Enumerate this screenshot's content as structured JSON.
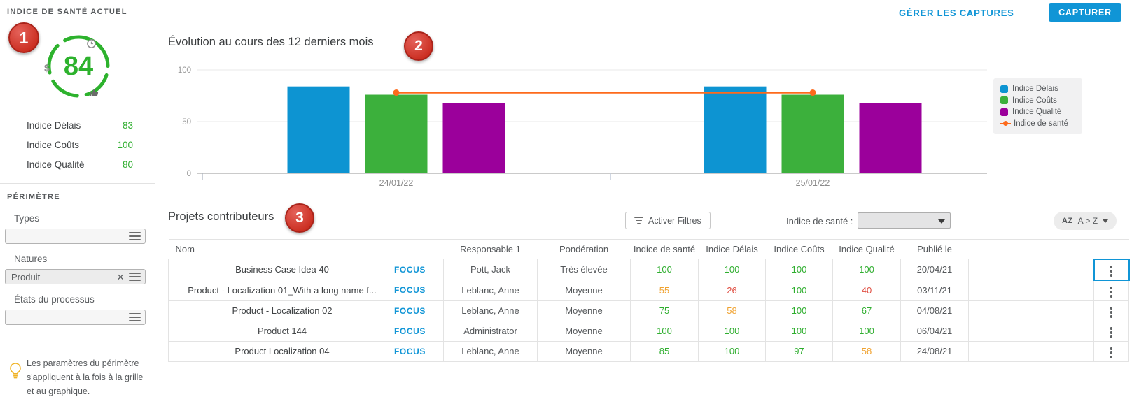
{
  "colors": {
    "accent_blue": "#1095d6",
    "badge_red": "#cb2e21",
    "status_green": "#2fae2f",
    "status_orange": "#f0a22f",
    "status_red": "#e04f43"
  },
  "annotations": {
    "badge1": "1",
    "badge2": "2",
    "badge3": "3"
  },
  "header": {
    "manage_captures_label": "GÉRER LES CAPTURES",
    "capture_label": "CAPTURER"
  },
  "sidebar": {
    "health_title": "INDICE DE SANTÉ ACTUEL",
    "gauge_value": "84",
    "indices": [
      {
        "label": "Indice Délais",
        "value": "83"
      },
      {
        "label": "Indice Coûts",
        "value": "100"
      },
      {
        "label": "Indice Qualité",
        "value": "80"
      }
    ],
    "perimetre_title": "PÉRIMÈTRE",
    "filters": [
      {
        "key": "types",
        "label": "Types",
        "value": "",
        "clearable": false
      },
      {
        "key": "natures",
        "label": "Natures",
        "value": "Produit",
        "clearable": true
      },
      {
        "key": "etats-du-processus",
        "label": "États du processus",
        "value": "",
        "clearable": false
      }
    ],
    "note": "Les paramètres du périmètre s'appliquent à la fois à la grille et au graphique."
  },
  "chart": {
    "title": "Évolution au cours des 12 derniers mois"
  },
  "chart_data": {
    "type": "bar",
    "categories": [
      "24/01/22",
      "25/01/22"
    ],
    "series": [
      {
        "name": "Indice Délais",
        "type": "bar",
        "color": "#0d94d2",
        "values": [
          84,
          84
        ]
      },
      {
        "name": "Indice Coûts",
        "type": "bar",
        "color": "#3cb03c",
        "values": [
          76,
          76
        ]
      },
      {
        "name": "Indice Qualité",
        "type": "bar",
        "color": "#9b009b",
        "values": [
          68,
          68
        ]
      },
      {
        "name": "Indice de santé",
        "type": "line",
        "color": "#fd6a1c",
        "values": [
          78,
          78
        ]
      }
    ],
    "ylim": [
      0,
      100
    ],
    "yticks": [
      0,
      50,
      100
    ],
    "grid": true,
    "legend_position": "right"
  },
  "table": {
    "title": "Projets contributeurs",
    "filter_button_label": "Activer Filtres",
    "health_filter_label": "Indice de santé :",
    "health_filter_value": "",
    "sort_icon_label": "AZ",
    "sort_label": "A > Z",
    "focus_label": "FOCUS",
    "columns": [
      "Nom",
      "Responsable 1",
      "Pondération",
      "Indice de santé",
      "Indice Délais",
      "Indice Coûts",
      "Indice Qualité",
      "Publié le"
    ],
    "rows": [
      {
        "name": "Business Case Idea 40",
        "owner": "Pott, Jack",
        "weight": "Très élevée",
        "scores": [
          {
            "value": "100",
            "color": "green"
          },
          {
            "value": "100",
            "color": "green"
          },
          {
            "value": "100",
            "color": "green"
          },
          {
            "value": "100",
            "color": "green"
          }
        ],
        "published": "20/04/21",
        "menu_focused": true
      },
      {
        "name": "Product - Localization 01_With a long name f...",
        "owner": "Leblanc, Anne",
        "weight": "Moyenne",
        "scores": [
          {
            "value": "55",
            "color": "orange"
          },
          {
            "value": "26",
            "color": "red"
          },
          {
            "value": "100",
            "color": "green"
          },
          {
            "value": "40",
            "color": "red"
          }
        ],
        "published": "03/11/21",
        "menu_focused": false
      },
      {
        "name": "Product - Localization 02",
        "owner": "Leblanc, Anne",
        "weight": "Moyenne",
        "scores": [
          {
            "value": "75",
            "color": "green"
          },
          {
            "value": "58",
            "color": "orange"
          },
          {
            "value": "100",
            "color": "green"
          },
          {
            "value": "67",
            "color": "green"
          }
        ],
        "published": "04/08/21",
        "menu_focused": false
      },
      {
        "name": "Product 144",
        "owner": "Administrator",
        "weight": "Moyenne",
        "scores": [
          {
            "value": "100",
            "color": "green"
          },
          {
            "value": "100",
            "color": "green"
          },
          {
            "value": "100",
            "color": "green"
          },
          {
            "value": "100",
            "color": "green"
          }
        ],
        "published": "06/04/21",
        "menu_focused": false
      },
      {
        "name": "Product Localization 04",
        "owner": "Leblanc, Anne",
        "weight": "Moyenne",
        "scores": [
          {
            "value": "85",
            "color": "green"
          },
          {
            "value": "100",
            "color": "green"
          },
          {
            "value": "97",
            "color": "green"
          },
          {
            "value": "58",
            "color": "orange"
          }
        ],
        "published": "24/08/21",
        "menu_focused": false
      }
    ]
  }
}
